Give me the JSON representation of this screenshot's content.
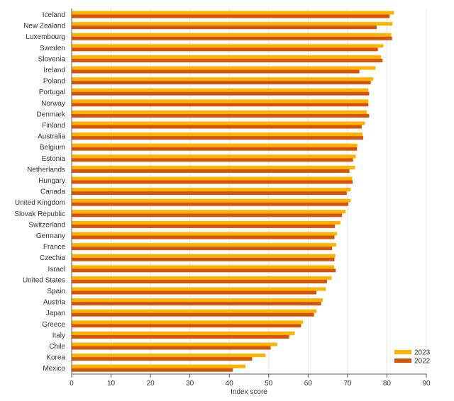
{
  "chart_data": {
    "type": "bar",
    "orientation": "horizontal",
    "title": "",
    "xlabel": "Index score",
    "ylabel": "",
    "xlim": [
      0,
      90
    ],
    "xticks": [
      0,
      10,
      20,
      30,
      40,
      50,
      60,
      70,
      80,
      90
    ],
    "grid": true,
    "legend_position": "bottom-right",
    "categories": [
      "Iceland",
      "New Zealand",
      "Luxembourg",
      "Sweden",
      "Slovenia",
      "Ireland",
      "Poland",
      "Portugal",
      "Norway",
      "Denmark",
      "Finland",
      "Australia",
      "Belgium",
      "Estonia",
      "Netherlands",
      "Hungary",
      "Canada",
      "United Kingdom",
      "Slovak Republic",
      "Switzerland",
      "Germany",
      "France",
      "Czechia",
      "Israel",
      "United States",
      "Spain",
      "Austria",
      "Japan",
      "Greece",
      "Italy",
      "Chile",
      "Korea",
      "Mexico"
    ],
    "series": [
      {
        "name": "2023",
        "color": "#ffb300",
        "values": [
          81.8,
          81.4,
          81.1,
          79.1,
          78.5,
          77.1,
          76.5,
          75.3,
          75.3,
          74.9,
          74.4,
          73.8,
          72.5,
          72.1,
          71.9,
          71.2,
          70.8,
          70.8,
          69.5,
          68.2,
          67.3,
          67.1,
          66.9,
          66.6,
          66.0,
          64.5,
          63.7,
          62.1,
          58.7,
          56.6,
          52.2,
          49.2,
          44.1
        ]
      },
      {
        "name": "2022",
        "color": "#d4540b",
        "values": [
          80.7,
          77.4,
          81.3,
          77.7,
          78.9,
          73.0,
          75.9,
          75.5,
          75.3,
          75.5,
          73.6,
          74.0,
          72.4,
          71.4,
          70.5,
          71.3,
          69.8,
          70.2,
          68.6,
          66.8,
          66.7,
          66.1,
          66.7,
          67.0,
          64.8,
          62.1,
          63.3,
          61.5,
          58.2,
          55.2,
          50.5,
          45.8,
          40.9
        ]
      }
    ]
  }
}
